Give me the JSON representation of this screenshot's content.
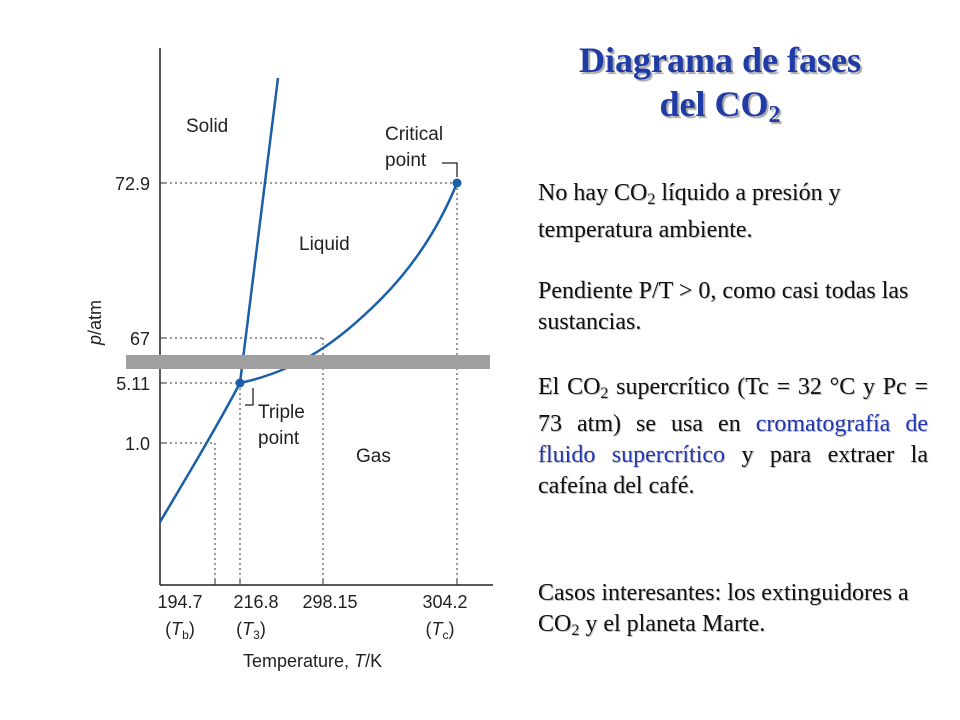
{
  "title": {
    "line1": "Diagrama de fases",
    "line2_prefix": "del CO",
    "line2_sub": "2"
  },
  "paragraphs": {
    "p1": {
      "a": "No hay CO",
      "sub": "2",
      "b": " líquido a presión y temperatura ambiente."
    },
    "p2": "Pendiente P/T > 0, como casi todas las sustancias.",
    "p3": {
      "a": "El CO",
      "sub": "2",
      "b": " supercrítico (Tc = 32 °C y Pc = 73 atm) se usa en ",
      "highlight": "cromatografía de fluido supercrítico",
      "c": " y para extraer la cafeína del café."
    },
    "p4": {
      "a": "Casos interesantes: los extinguidores a CO",
      "sub": "2",
      "b": " y el planeta Marte."
    }
  },
  "diagram": {
    "region_labels": {
      "solid": "Solid",
      "liquid": "Liquid",
      "gas": "Gas"
    },
    "critical_point_label": [
      "Critical",
      "point"
    ],
    "triple_point_label": [
      "Triple",
      "point"
    ],
    "y_axis_label_italic": "p",
    "y_axis_label_rest": "/atm",
    "y_ticks": [
      "72.9",
      "67",
      "5.11",
      "1.0"
    ],
    "x_ticks": [
      "194.7",
      "216.8",
      "298.15",
      "304.2"
    ],
    "x_sub_labels": [
      {
        "sym": "T",
        "sub": "b"
      },
      {
        "sym": "T",
        "sub": "3"
      },
      {
        "sym": "T",
        "sub": "c"
      }
    ],
    "x_axis_label_prefix": "Temperature, ",
    "x_axis_label_italic": "T",
    "x_axis_label_suffix": "/K",
    "colors": {
      "curve": "#1a5fa8",
      "point": "#1a5fa8",
      "band": "#a0a0a0",
      "axis": "#222222",
      "title": "#1f3ba6"
    }
  }
}
